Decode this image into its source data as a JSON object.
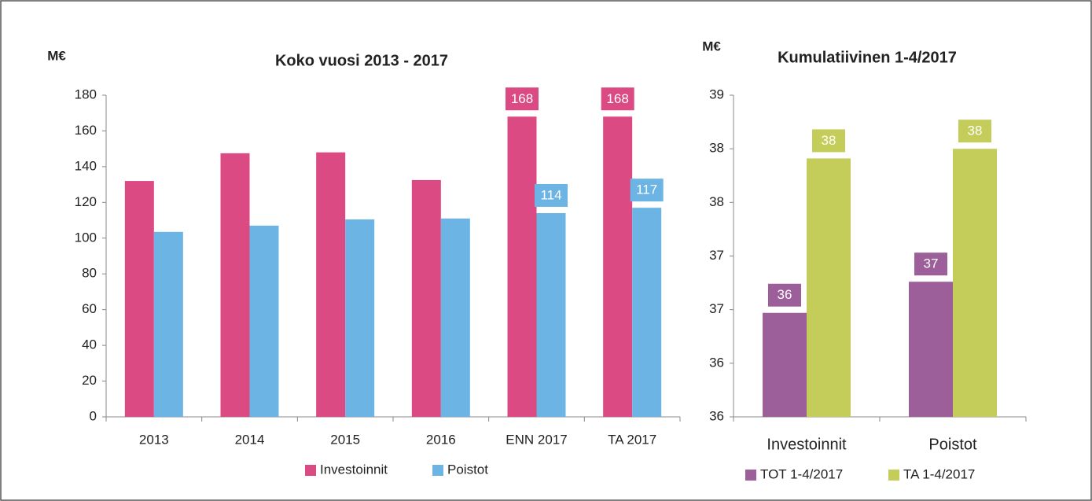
{
  "chart_data": [
    {
      "type": "bar",
      "title": "Koko vuosi 2013 - 2017",
      "ylabel": "M€",
      "categories": [
        "2013",
        "2014",
        "2015",
        "2016",
        "ENN 2017",
        "TA 2017"
      ],
      "series": [
        {
          "name": "Investoinnit",
          "color": "#dc4a84",
          "values": [
            132,
            147.5,
            148,
            132.5,
            168,
            168
          ],
          "value_labels": [
            null,
            null,
            null,
            null,
            "168",
            "168"
          ]
        },
        {
          "name": "Poistot",
          "color": "#6cb4e4",
          "values": [
            103.5,
            107,
            110.5,
            111,
            114,
            117
          ],
          "value_labels": [
            null,
            null,
            null,
            null,
            "114",
            "117"
          ]
        }
      ],
      "ylim": [
        0,
        180
      ],
      "yticks": [
        0,
        20,
        40,
        60,
        80,
        100,
        120,
        140,
        160,
        180
      ],
      "grid": false
    },
    {
      "type": "bar",
      "title": "Kumulatiivinen 1-4/2017",
      "ylabel": "M€",
      "categories": [
        "Investoinnit",
        "Poistot"
      ],
      "series": [
        {
          "name": "TOT 1-4/2017",
          "color": "#9c5f9a",
          "values": [
            36.47,
            36.76
          ],
          "value_labels": [
            "36",
            "37"
          ]
        },
        {
          "name": "TA 1-4/2017",
          "color": "#c4cc5a",
          "values": [
            37.91,
            38.0
          ],
          "value_labels": [
            "38",
            "38"
          ]
        }
      ],
      "ylim": [
        35.5,
        38.5
      ],
      "yticks": [
        {
          "value": 35.5,
          "label": "36"
        },
        {
          "value": 36,
          "label": "36"
        },
        {
          "value": 36.5,
          "label": "37"
        },
        {
          "value": 37,
          "label": "37"
        },
        {
          "value": 37.5,
          "label": "38"
        },
        {
          "value": 38,
          "label": "38"
        },
        {
          "value": 38.5,
          "label": "39"
        }
      ],
      "grid": false
    }
  ]
}
